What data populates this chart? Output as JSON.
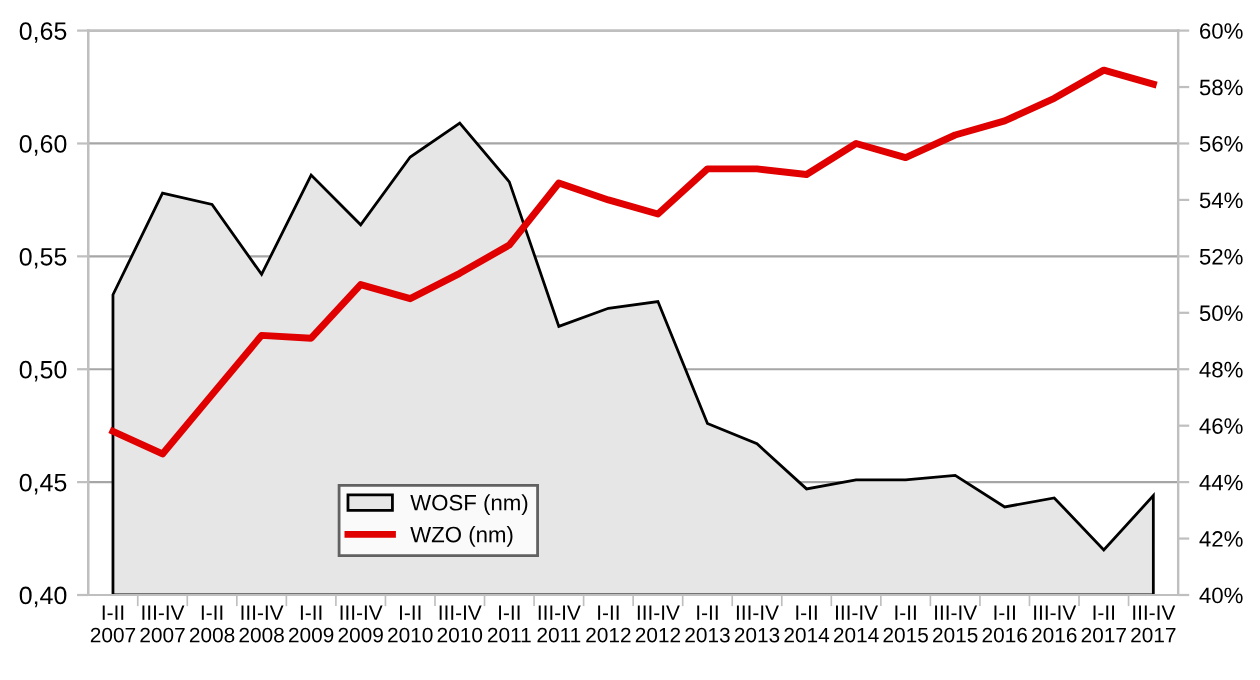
{
  "chart_data": {
    "type": "area",
    "categories": [
      "I-II\n2007",
      "III-IV\n2007",
      "I-II\n2008",
      "III-IV\n2008",
      "I-II\n2009",
      "III-IV\n2009",
      "I-II\n2010",
      "III-IV\n2010",
      "I-II\n2011",
      "III-IV\n2011",
      "I-II\n2012",
      "III-IV\n2012",
      "I-II\n2013",
      "III-IV\n2013",
      "I-II\n2014",
      "III-IV\n2014",
      "I-II\n2015",
      "III-IV\n2015",
      "I-II\n2016",
      "III-IV\n2016",
      "I-II\n2017",
      "III-IV\n2017"
    ],
    "series": [
      {
        "name": "WOSF (nm)",
        "color": "#e6e6e6",
        "values": [
          0.533,
          0.578,
          0.573,
          0.542,
          0.586,
          0.564,
          0.594,
          0.609,
          0.583,
          0.519,
          0.527,
          0.53,
          0.476,
          0.467,
          0.447,
          0.451,
          0.451,
          0.453,
          0.439,
          0.443,
          0.42,
          0.444
        ]
      },
      {
        "name": "WZO (nm)",
        "type": "line",
        "axis": "y2",
        "color": "#e00000",
        "values": [
          45.8,
          45.0,
          47.1,
          49.2,
          49.1,
          51.0,
          50.5,
          51.4,
          52.4,
          54.6,
          54.0,
          53.5,
          55.1,
          55.1,
          54.9,
          56.0,
          55.5,
          56.3,
          56.8,
          57.6,
          58.6,
          58.1
        ]
      }
    ],
    "ylim": [
      0.4,
      0.65
    ],
    "yticks": [
      {
        "value": 0.4,
        "label": "0,40"
      },
      {
        "value": 0.45,
        "label": "0,45"
      },
      {
        "value": 0.5,
        "label": "0,50"
      },
      {
        "value": 0.55,
        "label": "0,55"
      },
      {
        "value": 0.6,
        "label": "0,60"
      },
      {
        "value": 0.65,
        "label": "0,65"
      }
    ],
    "y2lim": [
      40,
      60
    ],
    "y2ticks": [
      {
        "value": 40,
        "label": "40%"
      },
      {
        "value": 42,
        "label": "42%"
      },
      {
        "value": 44,
        "label": "44%"
      },
      {
        "value": 46,
        "label": "46%"
      },
      {
        "value": 48,
        "label": "48%"
      },
      {
        "value": 50,
        "label": "50%"
      },
      {
        "value": 52,
        "label": "52%"
      },
      {
        "value": 54,
        "label": "54%"
      },
      {
        "value": 56,
        "label": "56%"
      },
      {
        "value": 58,
        "label": "58%"
      },
      {
        "value": 60,
        "label": "60%"
      }
    ],
    "grid": "y",
    "legend": "bottom left",
    "marker": "none",
    "line_style": "solid"
  }
}
